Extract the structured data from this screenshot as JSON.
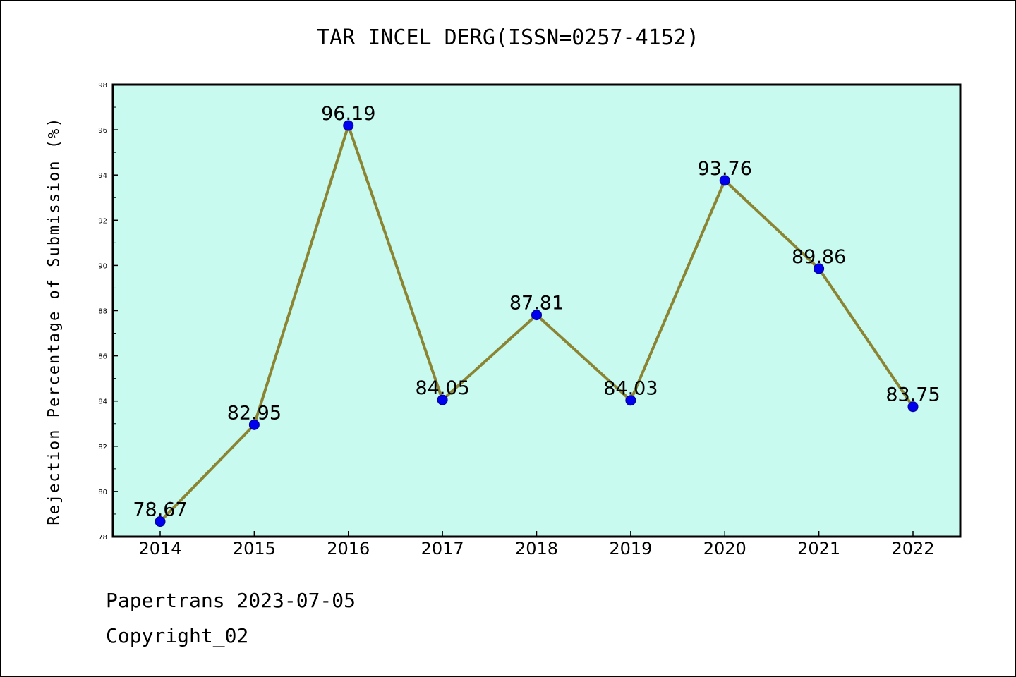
{
  "chart_data": {
    "type": "line",
    "title": "TAR INCEL DERG(ISSN=0257-4152)",
    "xlabel": "",
    "ylabel": "Rejection Percentage of Submission (%)",
    "categories": [
      "2014",
      "2015",
      "2016",
      "2017",
      "2018",
      "2019",
      "2020",
      "2021",
      "2022"
    ],
    "values": [
      78.67,
      82.95,
      96.19,
      84.05,
      87.81,
      84.03,
      93.76,
      89.86,
      83.75
    ],
    "data_labels": [
      "78.67",
      "82.95",
      "96.19",
      "84.05",
      "87.81",
      "84.03",
      "93.76",
      "89.86",
      "83.75"
    ],
    "ylim": [
      78,
      98
    ],
    "yticks": [
      "78",
      "80",
      "82",
      "84",
      "86",
      "88",
      "90",
      "92",
      "94",
      "96",
      "98"
    ],
    "grid": false,
    "colors": {
      "plot_bg": "#c8faf0",
      "line": "#8b8432",
      "marker": "#0000ee"
    }
  },
  "footer": {
    "line1": "Papertrans 2023-07-05",
    "line2": "Copyright_02"
  }
}
